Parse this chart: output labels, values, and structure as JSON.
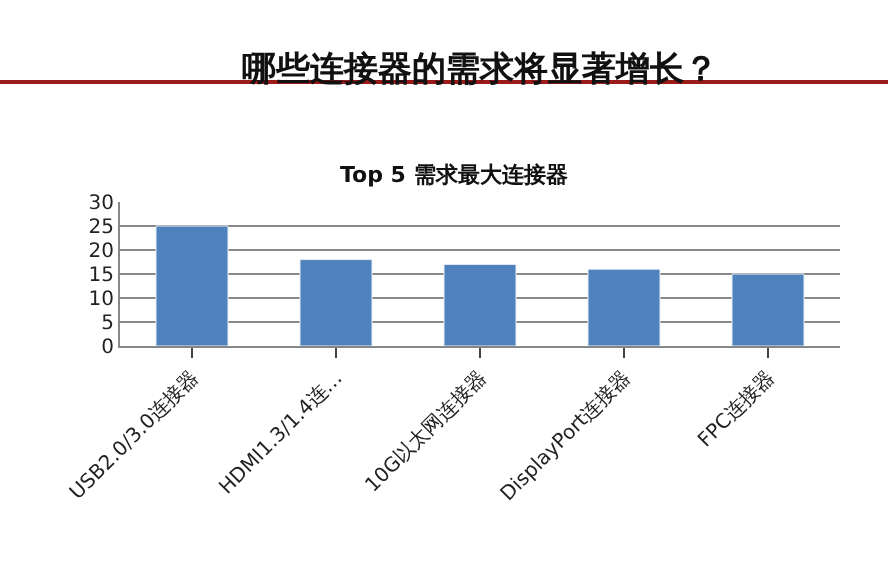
{
  "chart_data": {
    "type": "bar",
    "title": "哪些连接器的需求将显著增长？",
    "subtitle": "Top 5 需求最大连接器",
    "categories": [
      "USB2.0/3.0连接器",
      "HDMI1.3/1.4连…",
      "10G以太网连接器",
      "DisplayPort连接器",
      "FPC连接器"
    ],
    "values": [
      25,
      18,
      17,
      16,
      15
    ],
    "color": "#4f81bd",
    "ylim": [
      0,
      30
    ],
    "yticks": [
      0,
      5,
      10,
      15,
      20,
      25,
      30
    ],
    "grid": "y",
    "legend": false
  }
}
